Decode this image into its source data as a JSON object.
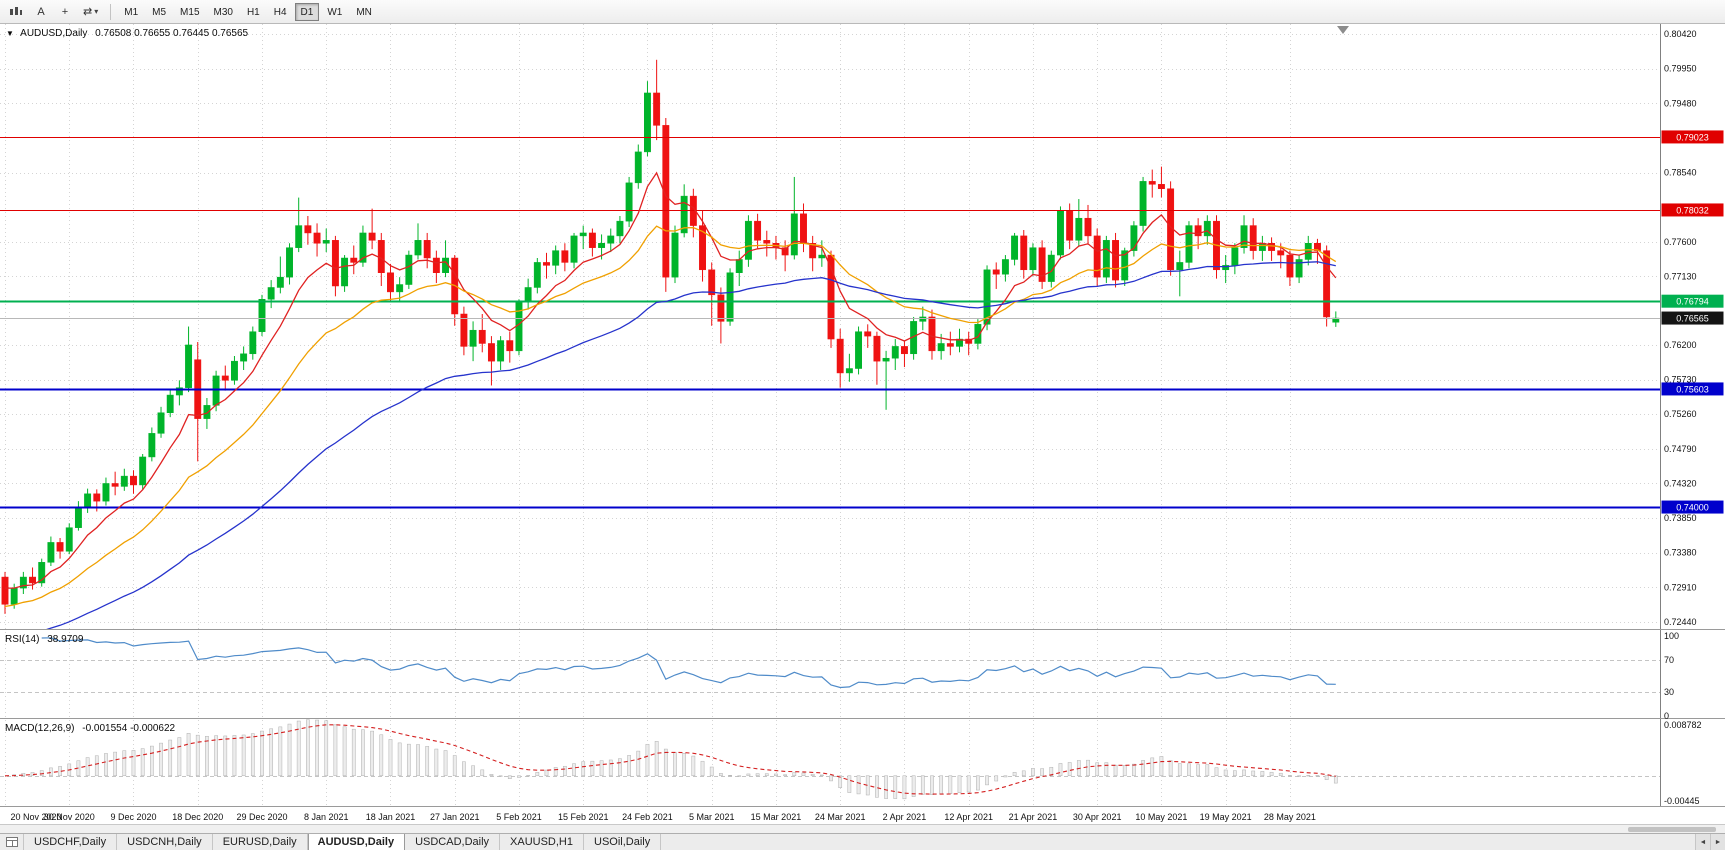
{
  "toolbar": {
    "text_tool_label": "A",
    "timeframes": [
      "M1",
      "M5",
      "M15",
      "M30",
      "H1",
      "H4",
      "D1",
      "W1",
      "MN"
    ],
    "active_timeframe": "D1"
  },
  "icons": {
    "collapse_icon": "▼",
    "dropdown_caret": "▾",
    "swap_arrows": "⇄",
    "crosshair": "+",
    "tab_scroll_left": "◄",
    "tab_scroll_right": "►"
  },
  "chart": {
    "title": "AUDUSD,Daily",
    "ohlc_text": "0.76508 0.76655 0.76445 0.76565"
  },
  "chart_data": {
    "type": "candlestick",
    "symbol": "AUDUSD",
    "period": "Daily",
    "up_color": "#00b42a",
    "down_color": "#ef1212",
    "y_axis": {
      "labels": [
        "0.80420",
        "0.79950",
        "0.79480",
        "0.78540",
        "0.77600",
        "0.77130",
        "0.76200",
        "0.75730",
        "0.75260",
        "0.74790",
        "0.74320",
        "0.73850",
        "0.73380",
        "0.72910",
        "0.72440"
      ],
      "max": 0.8042,
      "min": 0.7244
    },
    "x_ticks": {
      "candle_interval": 7,
      "labels": [
        "20 Nov 2020",
        "30 Nov 2020",
        "9 Dec 2020",
        "18 Dec 2020",
        "29 Dec 2020",
        "8 Jan 2021",
        "18 Jan 2021",
        "27 Jan 2021",
        "5 Feb 2021",
        "15 Feb 2021",
        "24 Feb 2021",
        "5 Mar 2021",
        "15 Mar 2021",
        "24 Mar 2021",
        "2 Apr 2021",
        "12 Apr 2021",
        "21 Apr 2021",
        "30 Apr 2021",
        "10 May 2021",
        "19 May 2021",
        "28 May 2021"
      ]
    },
    "moving_averages": [
      {
        "period": 8,
        "color": "#e02222",
        "seed": 0.729
      },
      {
        "period": 21,
        "color": "#f0a000",
        "seed": 0.7265
      },
      {
        "period": 55,
        "color": "#2633cc",
        "seed": 0.722
      }
    ],
    "hlines": [
      {
        "price": 0.79023,
        "label": "0.79023",
        "color": "#e00000",
        "width": 1
      },
      {
        "price": 0.78032,
        "label": "0.78032",
        "color": "#e00000",
        "width": 1
      },
      {
        "price": 0.76794,
        "label": "0.76794",
        "color": "#00b050",
        "width": 2
      },
      {
        "price": 0.75603,
        "label": "0.75603",
        "color": "#0000cc",
        "width": 2
      },
      {
        "price": 0.74,
        "label": "0.74000",
        "color": "#0000cc",
        "width": 2
      }
    ],
    "current_price": {
      "value": 0.76565,
      "label": "0.76565",
      "line_color": "#b8b8b8",
      "box_color": "#141414"
    },
    "candles": [
      [
        0.7305,
        0.7312,
        0.7255,
        0.7268
      ],
      [
        0.7268,
        0.7296,
        0.7262,
        0.729
      ],
      [
        0.729,
        0.7312,
        0.7282,
        0.7305
      ],
      [
        0.7305,
        0.7318,
        0.7288,
        0.7297
      ],
      [
        0.7297,
        0.733,
        0.7292,
        0.7325
      ],
      [
        0.7325,
        0.736,
        0.732,
        0.7352
      ],
      [
        0.7352,
        0.7358,
        0.733,
        0.734
      ],
      [
        0.734,
        0.7378,
        0.7336,
        0.7372
      ],
      [
        0.7372,
        0.7408,
        0.7368,
        0.74
      ],
      [
        0.74,
        0.7425,
        0.7392,
        0.7418
      ],
      [
        0.7418,
        0.7424,
        0.7394,
        0.7408
      ],
      [
        0.7408,
        0.744,
        0.7402,
        0.7432
      ],
      [
        0.7432,
        0.7448,
        0.7416,
        0.7428
      ],
      [
        0.7428,
        0.7452,
        0.7422,
        0.7442
      ],
      [
        0.7442,
        0.745,
        0.7418,
        0.743
      ],
      [
        0.743,
        0.7472,
        0.7424,
        0.7468
      ],
      [
        0.7468,
        0.7508,
        0.7462,
        0.75
      ],
      [
        0.75,
        0.7536,
        0.7494,
        0.7528
      ],
      [
        0.7528,
        0.756,
        0.7522,
        0.7552
      ],
      [
        0.7552,
        0.7572,
        0.7538,
        0.7562
      ],
      [
        0.7562,
        0.7645,
        0.7556,
        0.762
      ],
      [
        0.76,
        0.7624,
        0.7462,
        0.752
      ],
      [
        0.752,
        0.7548,
        0.7506,
        0.7538
      ],
      [
        0.7538,
        0.7585,
        0.753,
        0.7578
      ],
      [
        0.7578,
        0.7592,
        0.7558,
        0.7572
      ],
      [
        0.7572,
        0.7605,
        0.7566,
        0.7598
      ],
      [
        0.7598,
        0.7618,
        0.7586,
        0.7608
      ],
      [
        0.7608,
        0.7645,
        0.76,
        0.7638
      ],
      [
        0.7638,
        0.7688,
        0.7632,
        0.7682
      ],
      [
        0.7682,
        0.7708,
        0.767,
        0.7698
      ],
      [
        0.7698,
        0.774,
        0.769,
        0.7712
      ],
      [
        0.7712,
        0.7758,
        0.7702,
        0.7752
      ],
      [
        0.7752,
        0.782,
        0.7746,
        0.7782
      ],
      [
        0.7782,
        0.7795,
        0.7756,
        0.7772
      ],
      [
        0.7772,
        0.7785,
        0.774,
        0.7758
      ],
      [
        0.7758,
        0.7778,
        0.7746,
        0.7762
      ],
      [
        0.7762,
        0.7768,
        0.7686,
        0.77
      ],
      [
        0.77,
        0.7742,
        0.7692,
        0.7738
      ],
      [
        0.7738,
        0.7755,
        0.7716,
        0.7732
      ],
      [
        0.7732,
        0.7782,
        0.7726,
        0.7772
      ],
      [
        0.7772,
        0.7805,
        0.775,
        0.7762
      ],
      [
        0.7762,
        0.7772,
        0.77,
        0.7718
      ],
      [
        0.7718,
        0.773,
        0.7678,
        0.7692
      ],
      [
        0.7692,
        0.7712,
        0.768,
        0.7702
      ],
      [
        0.7702,
        0.7748,
        0.7696,
        0.7742
      ],
      [
        0.7742,
        0.7785,
        0.7736,
        0.7762
      ],
      [
        0.7762,
        0.7772,
        0.7724,
        0.7738
      ],
      [
        0.7738,
        0.7748,
        0.7704,
        0.7718
      ],
      [
        0.7718,
        0.7762,
        0.7712,
        0.7738
      ],
      [
        0.7738,
        0.7742,
        0.7646,
        0.7662
      ],
      [
        0.7662,
        0.7672,
        0.7606,
        0.7618
      ],
      [
        0.7618,
        0.7652,
        0.7598,
        0.764
      ],
      [
        0.764,
        0.7662,
        0.761,
        0.7622
      ],
      [
        0.7622,
        0.7632,
        0.7565,
        0.7598
      ],
      [
        0.7598,
        0.7632,
        0.7586,
        0.7626
      ],
      [
        0.7626,
        0.7638,
        0.7596,
        0.7612
      ],
      [
        0.7612,
        0.7682,
        0.7606,
        0.7678
      ],
      [
        0.7678,
        0.771,
        0.7668,
        0.7698
      ],
      [
        0.7698,
        0.7738,
        0.769,
        0.7732
      ],
      [
        0.7732,
        0.7745,
        0.771,
        0.7728
      ],
      [
        0.7728,
        0.7755,
        0.7716,
        0.7748
      ],
      [
        0.7748,
        0.7758,
        0.772,
        0.7732
      ],
      [
        0.7732,
        0.7772,
        0.7724,
        0.7768
      ],
      [
        0.7768,
        0.7782,
        0.775,
        0.7772
      ],
      [
        0.7772,
        0.7778,
        0.774,
        0.7752
      ],
      [
        0.7752,
        0.777,
        0.7736,
        0.7758
      ],
      [
        0.7758,
        0.7778,
        0.7746,
        0.7768
      ],
      [
        0.7768,
        0.7795,
        0.7758,
        0.7788
      ],
      [
        0.7788,
        0.7848,
        0.778,
        0.784
      ],
      [
        0.784,
        0.7892,
        0.7832,
        0.7882
      ],
      [
        0.7882,
        0.7978,
        0.7876,
        0.7962
      ],
      [
        0.7962,
        0.8007,
        0.7898,
        0.7918
      ],
      [
        0.7918,
        0.7928,
        0.7692,
        0.7712
      ],
      [
        0.7712,
        0.7782,
        0.7704,
        0.7772
      ],
      [
        0.7772,
        0.7838,
        0.7766,
        0.7822
      ],
      [
        0.7822,
        0.7832,
        0.7766,
        0.7782
      ],
      [
        0.7782,
        0.7802,
        0.7706,
        0.7722
      ],
      [
        0.7722,
        0.7732,
        0.7646,
        0.7688
      ],
      [
        0.7688,
        0.7698,
        0.7622,
        0.7652
      ],
      [
        0.7652,
        0.7724,
        0.7646,
        0.7718
      ],
      [
        0.7718,
        0.7748,
        0.77,
        0.7736
      ],
      [
        0.7736,
        0.7796,
        0.7726,
        0.7788
      ],
      [
        0.7788,
        0.7798,
        0.775,
        0.7762
      ],
      [
        0.7762,
        0.7775,
        0.774,
        0.7758
      ],
      [
        0.7758,
        0.7768,
        0.7736,
        0.7752
      ],
      [
        0.7752,
        0.7762,
        0.772,
        0.7742
      ],
      [
        0.7742,
        0.7848,
        0.7736,
        0.7798
      ],
      [
        0.7798,
        0.7812,
        0.7746,
        0.7758
      ],
      [
        0.7758,
        0.7768,
        0.772,
        0.7738
      ],
      [
        0.7738,
        0.7762,
        0.7726,
        0.7742
      ],
      [
        0.7742,
        0.7748,
        0.7616,
        0.7628
      ],
      [
        0.7628,
        0.7642,
        0.7562,
        0.7582
      ],
      [
        0.7582,
        0.7608,
        0.757,
        0.7588
      ],
      [
        0.7588,
        0.7645,
        0.758,
        0.7638
      ],
      [
        0.7638,
        0.7648,
        0.7616,
        0.7632
      ],
      [
        0.7632,
        0.7638,
        0.7566,
        0.7598
      ],
      [
        0.7598,
        0.7612,
        0.7532,
        0.7602
      ],
      [
        0.7602,
        0.7628,
        0.7586,
        0.7618
      ],
      [
        0.7618,
        0.7625,
        0.759,
        0.7608
      ],
      [
        0.7608,
        0.7658,
        0.76,
        0.7652
      ],
      [
        0.7652,
        0.7672,
        0.764,
        0.7658
      ],
      [
        0.7658,
        0.7668,
        0.76,
        0.7612
      ],
      [
        0.7612,
        0.7635,
        0.76,
        0.7622
      ],
      [
        0.7622,
        0.7638,
        0.7606,
        0.7618
      ],
      [
        0.7618,
        0.7642,
        0.761,
        0.7628
      ],
      [
        0.7628,
        0.7638,
        0.7606,
        0.7622
      ],
      [
        0.7622,
        0.7655,
        0.7614,
        0.7648
      ],
      [
        0.7648,
        0.7728,
        0.764,
        0.7722
      ],
      [
        0.7722,
        0.7732,
        0.7696,
        0.7716
      ],
      [
        0.7716,
        0.7742,
        0.7706,
        0.7736
      ],
      [
        0.7736,
        0.7772,
        0.7728,
        0.7768
      ],
      [
        0.7768,
        0.7776,
        0.771,
        0.7722
      ],
      [
        0.7722,
        0.7758,
        0.7714,
        0.7752
      ],
      [
        0.7752,
        0.7762,
        0.7696,
        0.7706
      ],
      [
        0.7706,
        0.7748,
        0.7698,
        0.7742
      ],
      [
        0.7742,
        0.7808,
        0.7736,
        0.7802
      ],
      [
        0.7802,
        0.7812,
        0.775,
        0.7762
      ],
      [
        0.7762,
        0.7818,
        0.7754,
        0.7792
      ],
      [
        0.7792,
        0.781,
        0.7756,
        0.7768
      ],
      [
        0.7768,
        0.7778,
        0.77,
        0.7712
      ],
      [
        0.7712,
        0.7768,
        0.7704,
        0.7762
      ],
      [
        0.7762,
        0.7772,
        0.7698,
        0.7708
      ],
      [
        0.7708,
        0.7752,
        0.77,
        0.7748
      ],
      [
        0.7748,
        0.7788,
        0.774,
        0.7782
      ],
      [
        0.7782,
        0.7848,
        0.7774,
        0.7842
      ],
      [
        0.7842,
        0.7858,
        0.782,
        0.7838
      ],
      [
        0.7838,
        0.7862,
        0.782,
        0.7832
      ],
      [
        0.7832,
        0.7842,
        0.7714,
        0.7722
      ],
      [
        0.7722,
        0.7748,
        0.7686,
        0.7732
      ],
      [
        0.7732,
        0.7788,
        0.7724,
        0.7782
      ],
      [
        0.7782,
        0.7792,
        0.775,
        0.7768
      ],
      [
        0.7768,
        0.7796,
        0.7756,
        0.7788
      ],
      [
        0.7788,
        0.7796,
        0.771,
        0.7722
      ],
      [
        0.7722,
        0.7742,
        0.7704,
        0.7728
      ],
      [
        0.7728,
        0.7758,
        0.7716,
        0.7752
      ],
      [
        0.7752,
        0.7796,
        0.7744,
        0.7782
      ],
      [
        0.7782,
        0.7792,
        0.7736,
        0.7748
      ],
      [
        0.7748,
        0.7768,
        0.7734,
        0.7758
      ],
      [
        0.7758,
        0.7766,
        0.7734,
        0.7748
      ],
      [
        0.7748,
        0.7758,
        0.7724,
        0.7742
      ],
      [
        0.7742,
        0.7748,
        0.77,
        0.7712
      ],
      [
        0.7712,
        0.7742,
        0.7704,
        0.7736
      ],
      [
        0.7736,
        0.7768,
        0.7728,
        0.7758
      ],
      [
        0.7758,
        0.7764,
        0.773,
        0.7748
      ],
      [
        0.7748,
        0.7755,
        0.7645,
        0.7658
      ],
      [
        0.76508,
        0.76655,
        0.76445,
        0.76565
      ]
    ]
  },
  "rsi": {
    "name": "RSI(14)",
    "value": "38.9709",
    "period": 14,
    "levels": [
      "100",
      "70",
      "30",
      "0"
    ],
    "line_color": "#4f8bc9"
  },
  "macd": {
    "name": "MACD(12,26,9)",
    "values": "-0.001554 -0.000622",
    "fast": 12,
    "slow": 26,
    "signal_period": 9,
    "axis_labels": [
      "0.008782",
      "-0.00445"
    ],
    "axis_max": 0.008782,
    "axis_min": -0.00445,
    "histogram_color": "#ececec",
    "histogram_border": "#b0b0b0",
    "signal_color": "#d42020"
  },
  "tabs": {
    "items": [
      "USDCHF,Daily",
      "USDCNH,Daily",
      "EURUSD,Daily",
      "AUDUSD,Daily",
      "USDCAD,Daily",
      "XAUUSD,H1",
      "USOil,Daily"
    ],
    "active": "AUDUSD,Daily"
  }
}
